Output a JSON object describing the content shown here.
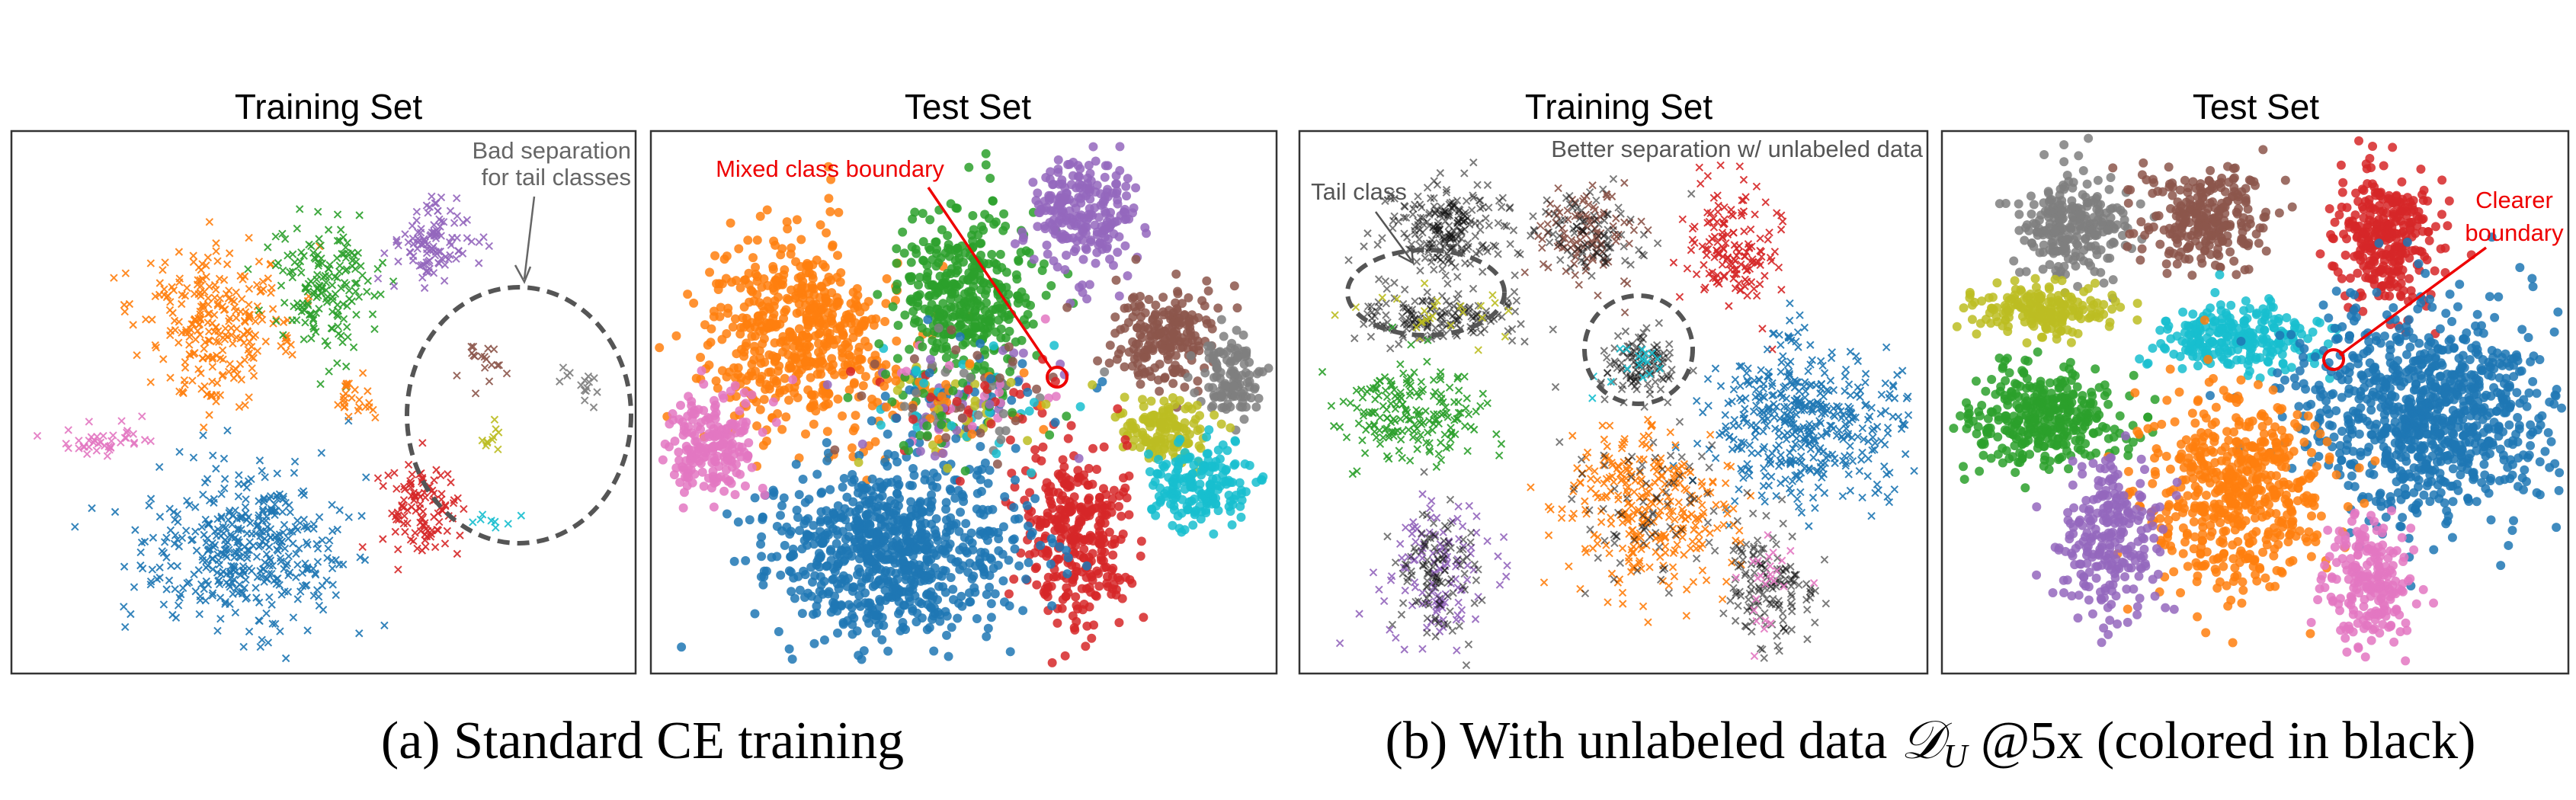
{
  "panels": [
    {
      "title": "Training Set",
      "annotations": [
        "Bad separation",
        "for tail classes"
      ]
    },
    {
      "title": "Test Set",
      "annotations": [
        "Mixed class boundary"
      ]
    },
    {
      "title": "Training Set",
      "annotations": [
        "Better separation w/ unlabeled data",
        "Tail class"
      ]
    },
    {
      "title": "Test Set",
      "annotations": [
        "Clearer",
        "boundary"
      ]
    }
  ],
  "captions": {
    "a": "(a) Standard CE training",
    "b": {
      "before": "(b) With unlabeled data",
      "symbol": "𝒟",
      "subscript": "U",
      "after": "@5x (colored in black)"
    }
  }
}
